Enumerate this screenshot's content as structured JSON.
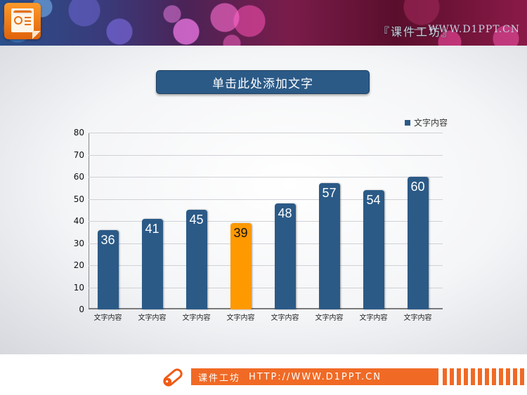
{
  "header": {
    "title": "『课件工坊』",
    "separator_url": "— WWW.D1PPT.CN",
    "logo_icon": "presentation-icon"
  },
  "slide": {
    "title": "单击此处添加文字"
  },
  "legend": {
    "label": "文字内容",
    "color": "#2b5a87"
  },
  "chart_data": {
    "type": "bar",
    "title": "单击此处添加文字",
    "xlabel": "",
    "ylabel": "",
    "ylim": [
      0,
      80
    ],
    "yticks": [
      0,
      10,
      20,
      30,
      40,
      50,
      60,
      70,
      80
    ],
    "grid": true,
    "legend_position": "top-right",
    "categories": [
      "文字内容",
      "文字内容",
      "文字内容",
      "文字内容",
      "文字内容",
      "文字内容",
      "文字内容",
      "文字内容"
    ],
    "series": [
      {
        "name": "文字内容",
        "values": [
          36,
          41,
          45,
          39,
          48,
          57,
          54,
          60
        ]
      }
    ],
    "highlight": {
      "index": 3,
      "color": "#ff9900"
    },
    "bar_color": "#2b5a87"
  },
  "footer": {
    "brand": "课件工坊",
    "url": "HTTP://WWW.D1PPT.CN",
    "accent_color": "#f06a25",
    "icon": "pencil-icon"
  }
}
